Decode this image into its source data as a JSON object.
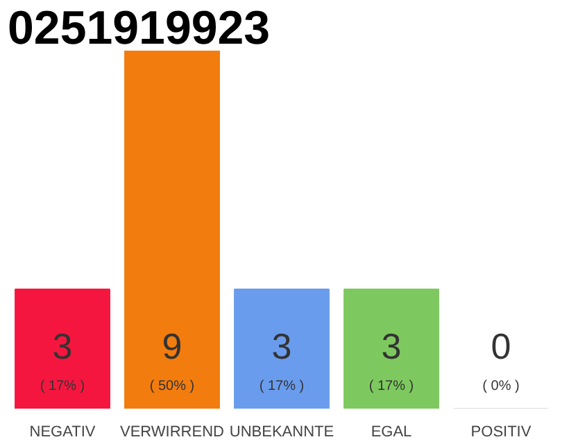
{
  "chart_data": {
    "type": "bar",
    "title": "0251919923",
    "categories": [
      "NEGATIV",
      "VERWIRREND",
      "UNBEKANNTE",
      "EGAL",
      "POSITIV"
    ],
    "values": [
      3,
      9,
      3,
      3,
      0
    ],
    "colors": [
      "#f5163f",
      "#f27c0e",
      "#6a9cee",
      "#7ec95f",
      "#dddddd"
    ],
    "ylim": [
      0,
      9
    ],
    "tick_labels": "x",
    "data_labels": true,
    "grid": false,
    "annotations": [
      "( 17% )",
      "( 50% )",
      "( 17% )",
      "( 17% )",
      "( 0% )"
    ]
  }
}
